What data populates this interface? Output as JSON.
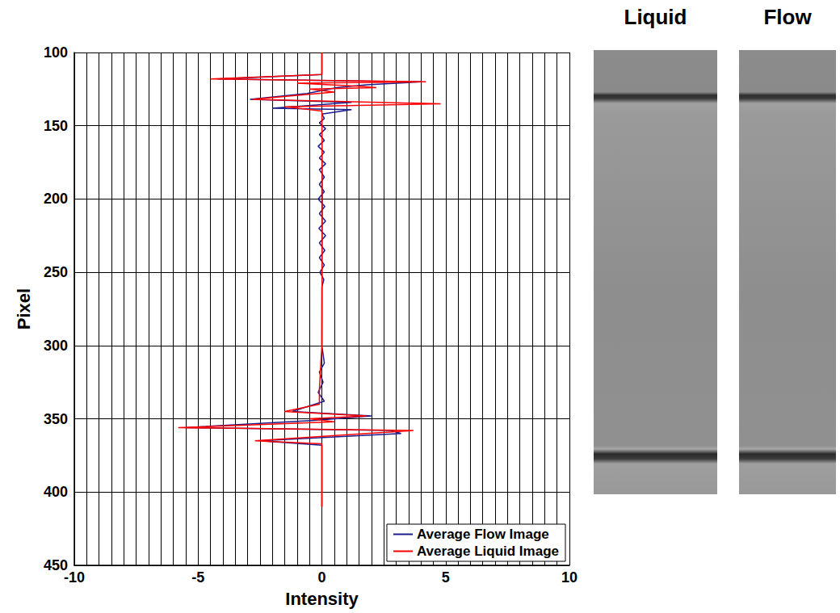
{
  "chart_data": {
    "type": "line",
    "x_label": "Intensity",
    "y_label": "Pixel",
    "xlim": [
      -10,
      10
    ],
    "xticks": [
      -10,
      -5,
      0,
      5,
      10
    ],
    "ylim": [
      100,
      450
    ],
    "yticks": [
      100,
      150,
      200,
      250,
      300,
      350,
      400,
      450
    ],
    "grid": true,
    "legend": "lower right",
    "series": [
      {
        "name": "Average Flow Image",
        "color": "#1c1c8c",
        "x": [
          0,
          0,
          -4.2,
          4.0,
          1.8,
          0.6,
          -0.6,
          -2.9,
          1.2,
          -2.0,
          1.2,
          0,
          0.1,
          -0.1,
          0.15,
          -0.1,
          0.1,
          -0.15,
          0.1,
          -0.1,
          0.15,
          -0.1,
          0.1,
          -0.1,
          0.1,
          -0.15,
          0.12,
          -0.1,
          0.15,
          -0.12,
          0.15,
          -0.1,
          0.12,
          -0.1,
          0.1,
          -0.08,
          0.08,
          0,
          0,
          0.1,
          -0.1,
          0.05,
          -0.15,
          0.1,
          -1.2,
          2.0,
          -0.3,
          -5.5,
          2.8,
          3.2,
          -2.5,
          0,
          0
        ],
        "y": [
          100,
          115,
          118,
          120,
          122,
          124,
          128,
          132,
          134,
          138,
          139,
          142,
          145,
          148,
          152,
          156,
          160,
          164,
          168,
          172,
          176,
          180,
          185,
          190,
          195,
          200,
          205,
          210,
          215,
          220,
          225,
          230,
          235,
          240,
          245,
          250,
          255,
          260,
          300,
          312,
          318,
          325,
          332,
          338,
          345,
          348,
          351,
          356,
          358,
          360,
          365,
          368,
          410
        ]
      },
      {
        "name": "Average Liquid Image",
        "color": "#ff0000",
        "x": [
          0,
          0,
          -4.5,
          4.2,
          -1.0,
          1.5,
          2.2,
          -0.5,
          0.5,
          -0.8,
          -2.8,
          4.8,
          -1.5,
          0,
          0.02,
          0,
          -0.1,
          -0.1,
          -1.5,
          1.8,
          -0.5,
          0.5,
          -5.8,
          3.7,
          1.8,
          -2.7,
          0,
          0
        ],
        "y": [
          100,
          115,
          118,
          120,
          121,
          123,
          124,
          125,
          127,
          129,
          132,
          135,
          137,
          140,
          200,
          300,
          330,
          340,
          345,
          348,
          350,
          352,
          356,
          358,
          360,
          365,
          367,
          410
        ]
      }
    ]
  },
  "panels": {
    "titles": [
      "Liquid",
      "Flow"
    ]
  }
}
